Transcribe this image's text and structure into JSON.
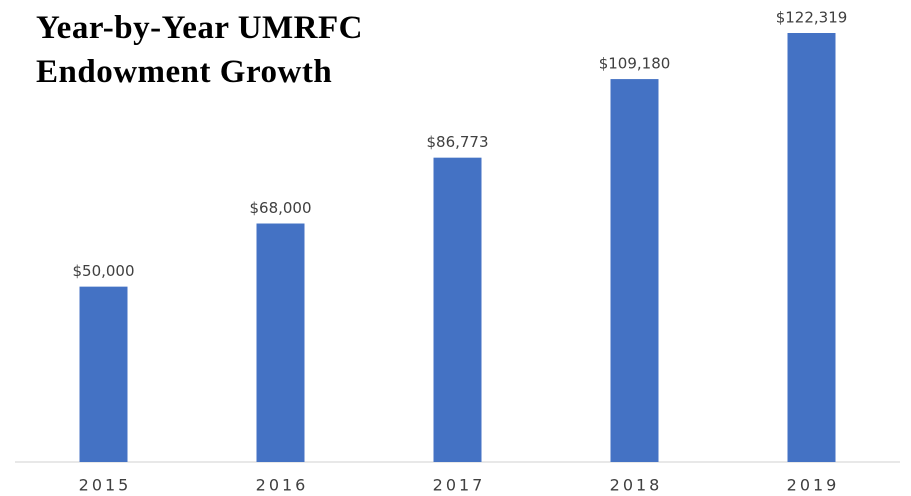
{
  "chart_data": {
    "type": "bar",
    "title": "Year-by-Year UMRFC Endowment Growth",
    "categories": [
      "2015",
      "2016",
      "2017",
      "2018",
      "2019"
    ],
    "values": [
      50000,
      68000,
      86773,
      109180,
      122319
    ],
    "value_labels": [
      "$50,000",
      "$68,000",
      "$86,773",
      "$109,180",
      "$122,319"
    ],
    "color": "#4472c4"
  }
}
